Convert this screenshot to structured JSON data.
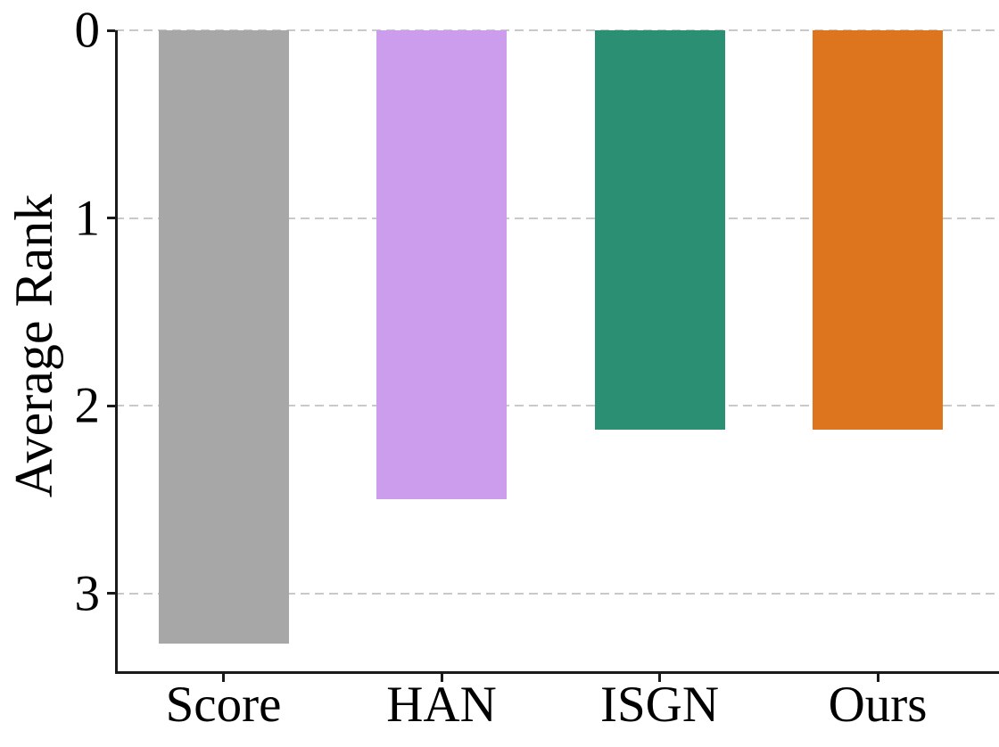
{
  "chart_data": {
    "type": "bar",
    "title": "",
    "ylabel": "Average Rank",
    "xlabel": "",
    "categories": [
      "Score",
      "HAN",
      "ISGN",
      "Ours"
    ],
    "values": [
      3.27,
      2.5,
      2.13,
      2.13
    ],
    "bar_colors": [
      "#a7a7a7",
      "#cc9ced",
      "#2b8f74",
      "#dd751f"
    ],
    "yticks": [
      0,
      1,
      2,
      3
    ],
    "ylim": [
      0,
      3.42
    ],
    "y_axis_inverted": true,
    "bars_grow_down_from_zero": true,
    "grid": "horizontal dashed",
    "gridline_color": "#c9c9c9",
    "axis_color": "#1a1a1a",
    "legend": "none"
  }
}
